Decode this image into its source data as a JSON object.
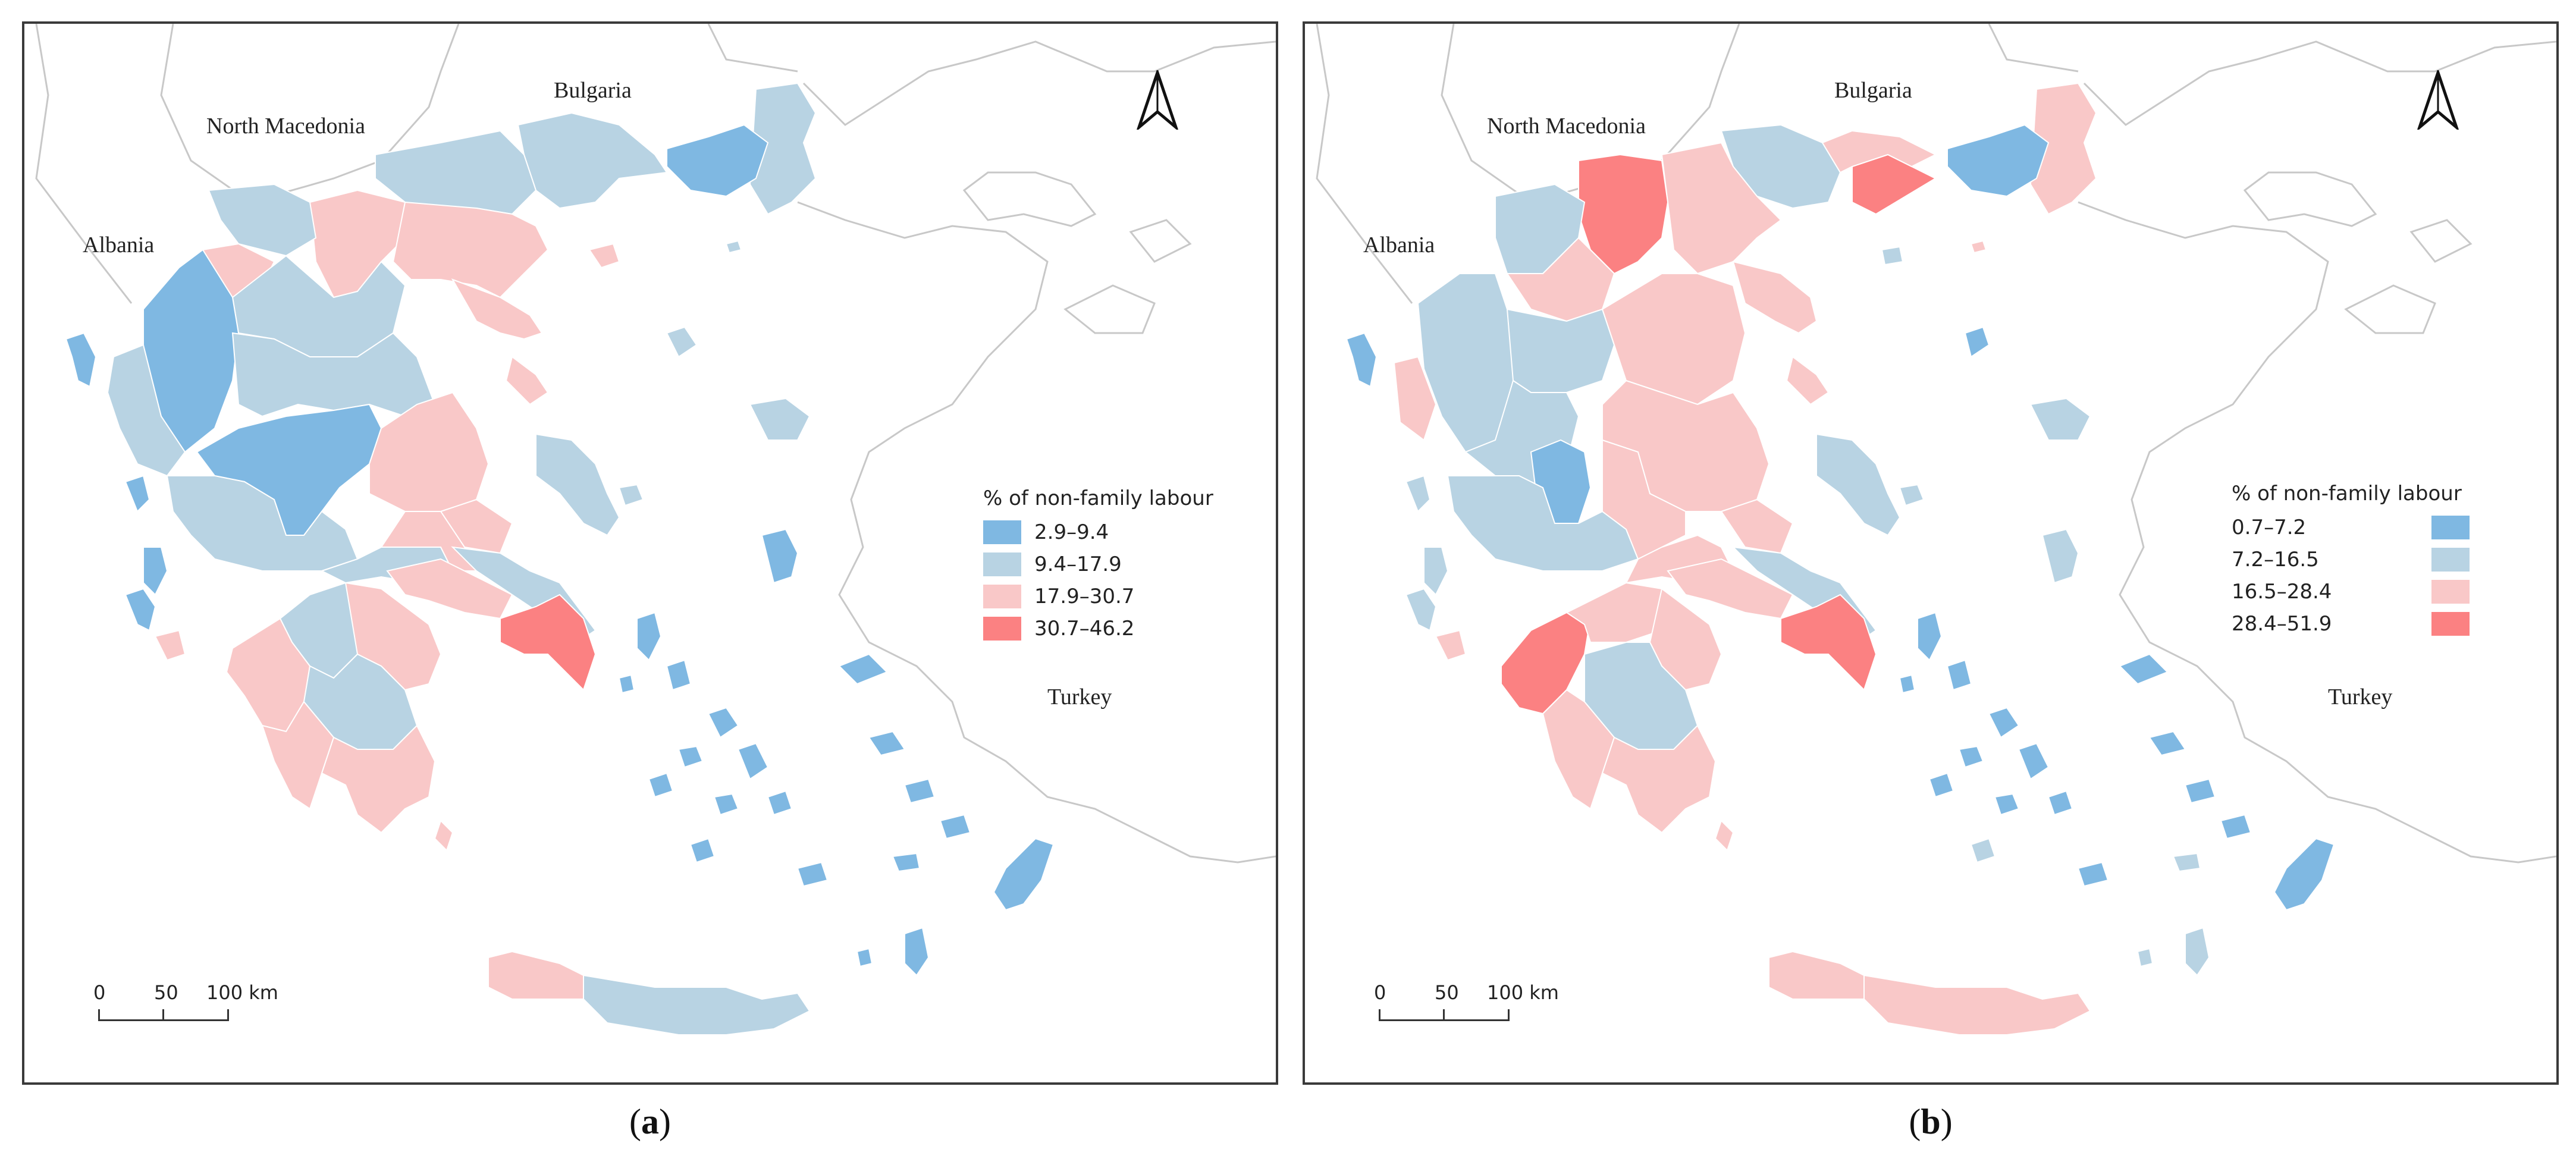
{
  "colors": {
    "class1": "#7fb8e2",
    "class2": "#b8d3e3",
    "class3": "#f9c8c8",
    "class4": "#fb8182",
    "neighbor_outline": "#c8c8c8",
    "frame": "#3a3a3a"
  },
  "north_arrow_icon": "north-arrow-icon",
  "panels": [
    {
      "caption_letter": "a",
      "countries": {
        "north_macedonia": "North Macedonia",
        "bulgaria": "Bulgaria",
        "albania": "Albania",
        "turkey": "Turkey"
      },
      "legend": {
        "title": "% of non-family labour",
        "classes": [
          {
            "label": "2.9–9.4",
            "color": "#7fb8e2"
          },
          {
            "label": "9.4–17.9",
            "color": "#b8d3e3"
          },
          {
            "label": "17.9–30.7",
            "color": "#f9c8c8"
          },
          {
            "label": "30.7–46.2",
            "color": "#fb8182"
          }
        ]
      },
      "scale": {
        "tick0": "0",
        "tick1": "50",
        "tick2": "100 km"
      }
    },
    {
      "caption_letter": "b",
      "countries": {
        "north_macedonia": "North Macedonia",
        "bulgaria": "Bulgaria",
        "albania": "Albania",
        "turkey": "Turkey"
      },
      "legend": {
        "title": "% of non-family labour",
        "classes": [
          {
            "label": "0.7–7.2",
            "color": "#7fb8e2"
          },
          {
            "label": "7.2–16.5",
            "color": "#b8d3e3"
          },
          {
            "label": "16.5–28.4",
            "color": "#f9c8c8"
          },
          {
            "label": "28.4–51.9",
            "color": "#fb8182"
          }
        ]
      },
      "scale": {
        "tick0": "0",
        "tick1": "50",
        "tick2": "100 km"
      }
    }
  ]
}
